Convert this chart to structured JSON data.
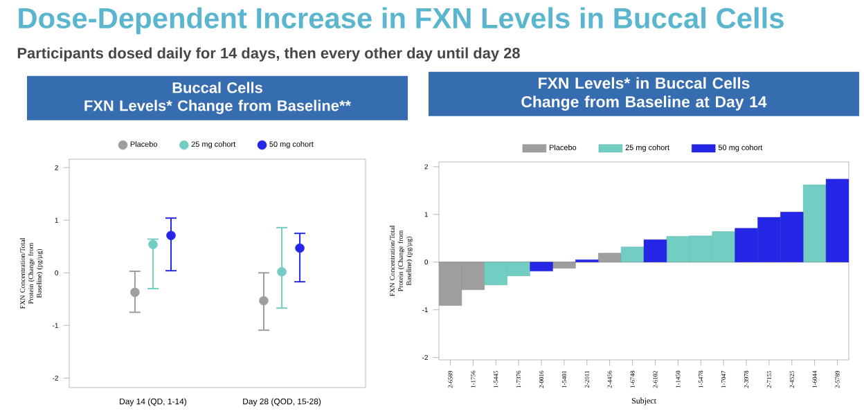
{
  "chart_data": [
    {
      "type": "scatter",
      "title": "Buccal Cells",
      "subtitle": "FXN Levels* Change from Baseline**",
      "annotations": [
        "Dose-Dependent Increase in FXN Levels in Buccal Cells",
        "Participants dosed daily for 14 days, then every other day until day 28"
      ],
      "ylabel": "FXN Concentration/Total Protein (Change from Baseline) (pg/µg)",
      "categories": [
        "Day 14 (QD, 1-14)",
        "Day 28 (QOD, 15-28)"
      ],
      "series": [
        {
          "name": "Placebo",
          "color": "#9e9e9e",
          "values": [
            -0.37,
            -0.53
          ],
          "errors": [
            [
              -0.75,
              0.03
            ],
            [
              -1.09,
              0.0
            ]
          ]
        },
        {
          "name": "25 mg cohort",
          "color": "#72cdc3",
          "values": [
            0.54,
            0.02
          ],
          "errors": [
            [
              -0.3,
              0.64
            ],
            [
              -0.67,
              0.86
            ]
          ]
        },
        {
          "name": "50 mg cohort",
          "color": "#2626e6",
          "values": [
            0.71,
            0.47
          ],
          "errors": [
            [
              0.04,
              1.04
            ],
            [
              -0.17,
              0.75
            ]
          ]
        }
      ],
      "ylim": [
        -2.18,
        2.16
      ],
      "yticks": [
        -2,
        -1,
        0,
        1,
        2
      ],
      "marker": "circle",
      "legend": "top",
      "grid": false
    },
    {
      "type": "bar",
      "title": "FXN Levels* in Buccal Cells",
      "subtitle": "Change from Baseline at Day 14",
      "xlabel": "Subject",
      "ylabel": "FXN Concentration/Total Protein (Change from Baseline) (pg/µg)",
      "categories": [
        "2-6589",
        "1-1756",
        "1-5445",
        "1-7376",
        "2-0016",
        "1-5401",
        "2-2011",
        "2-4456",
        "1-6748",
        "2-6102",
        "1-1450",
        "1-5478",
        "1-7047",
        "2-3978",
        "2-7155",
        "2-4525",
        "1-6044",
        "2-5789"
      ],
      "series": [
        {
          "name": "Placebo",
          "color": "#9e9e9e",
          "values": [
            -0.91,
            -0.58,
            null,
            null,
            null,
            -0.13,
            null,
            0.19,
            null,
            null,
            null,
            null,
            null,
            null,
            null,
            null,
            null,
            null
          ]
        },
        {
          "name": "25 mg cohort",
          "color": "#72cdc3",
          "values": [
            null,
            null,
            -0.48,
            -0.29,
            null,
            null,
            null,
            null,
            0.32,
            null,
            0.54,
            0.55,
            0.64,
            null,
            null,
            null,
            1.62,
            null
          ]
        },
        {
          "name": "50 mg cohort",
          "color": "#2626e6",
          "values": [
            null,
            null,
            null,
            null,
            -0.19,
            null,
            0.05,
            null,
            null,
            0.47,
            null,
            null,
            null,
            0.71,
            0.94,
            1.05,
            null,
            1.74
          ]
        }
      ],
      "ylim": [
        -2.05,
        2.1
      ],
      "yticks": [
        -2,
        -1,
        0,
        1,
        2
      ],
      "legend": "top",
      "grid": false,
      "ref_lines": [
        {
          "axis": "y",
          "value": 0,
          "color": "#999999"
        }
      ]
    }
  ]
}
